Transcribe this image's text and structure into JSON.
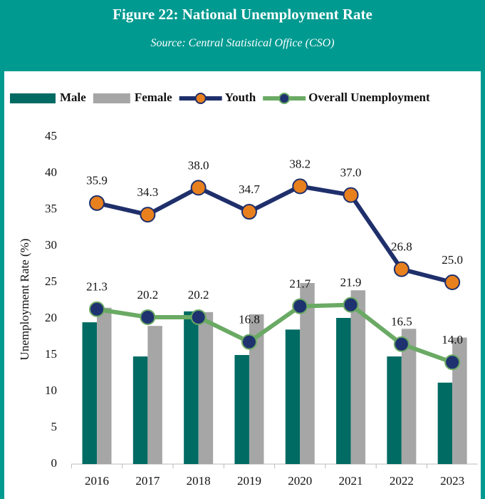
{
  "header": {
    "title": "Figure 22: National Unemployment Rate",
    "source": "Source: Central Statistical Office (CSO)"
  },
  "chart_data": {
    "type": "bar",
    "y_label": "Unemployment Rate (%)",
    "categories": [
      "2016",
      "2017",
      "2018",
      "2019",
      "2020",
      "2021",
      "2022",
      "2023"
    ],
    "ylim": [
      0,
      45
    ],
    "yticks": [
      0,
      5,
      10,
      15,
      20,
      25,
      30,
      35,
      40,
      45
    ],
    "series": [
      {
        "name": "Male",
        "type": "bar",
        "color": "#006b63",
        "values": [
          19.5,
          14.8,
          21.0,
          15.0,
          18.5,
          20.1,
          14.8,
          11.2
        ]
      },
      {
        "name": "Female",
        "type": "bar",
        "color": "#a6a6a6",
        "values": [
          21.5,
          19.0,
          20.9,
          20.6,
          24.9,
          23.9,
          18.6,
          17.4
        ]
      },
      {
        "name": "Youth",
        "type": "line",
        "color": "#1f2f6b",
        "marker_color": "#e8801e",
        "values": [
          35.9,
          34.3,
          38.0,
          34.7,
          38.2,
          37.0,
          26.8,
          25.0
        ],
        "value_labels": [
          "35.9",
          "34.3",
          "38.0",
          "34.7",
          "38.2",
          "37.0",
          "26.8",
          "25.0"
        ]
      },
      {
        "name": "Overall Unemployment",
        "type": "line",
        "color": "#6aaa64",
        "marker_color": "#1f3270",
        "values": [
          21.3,
          20.2,
          20.2,
          16.8,
          21.7,
          21.9,
          16.5,
          14.0
        ],
        "value_labels": [
          "21.3",
          "20.2",
          "20.2",
          "16.8",
          "21.7",
          "21.9",
          "16.5",
          "14.0"
        ]
      }
    ]
  }
}
